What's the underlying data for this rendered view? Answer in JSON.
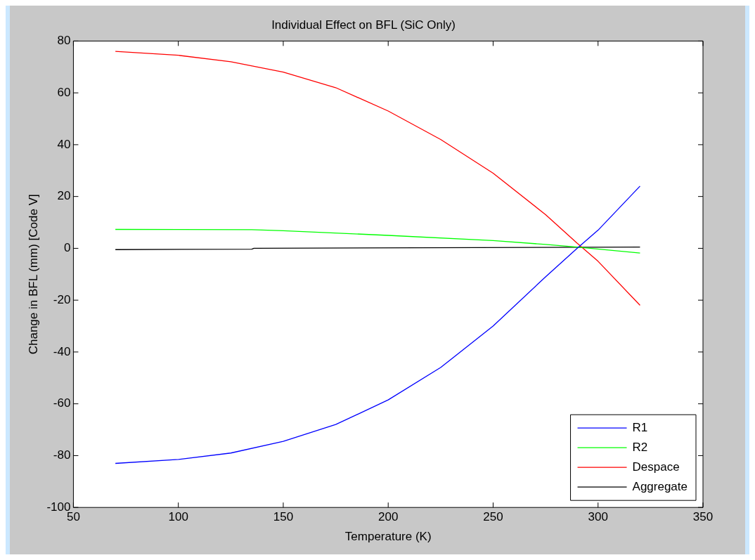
{
  "chart_data": {
    "type": "line",
    "title": "Individual Effect on BFL (SiC Only)",
    "xlabel": "Temperature (K)",
    "ylabel": "Change in BFL (mm) [Code V]",
    "xlim": [
      50,
      350
    ],
    "xticks": [
      50,
      100,
      150,
      200,
      250,
      300,
      350
    ],
    "ylim": [
      -100,
      80
    ],
    "yticks": [
      -100,
      -80,
      -60,
      -40,
      -20,
      0,
      20,
      40,
      60,
      80
    ],
    "grid": false,
    "legend": "bottom right",
    "marker": "none",
    "line_style": "solid",
    "series": [
      {
        "name": "R1",
        "color": "#0000ff",
        "x": [
          70,
          100,
          125,
          150,
          175,
          200,
          225,
          250,
          275,
          290,
          300,
          320
        ],
        "values": [
          -83,
          -81.5,
          -79,
          -74.5,
          -68,
          -58.5,
          -46,
          -30,
          -11,
          0,
          7,
          24
        ]
      },
      {
        "name": "R2",
        "color": "#00ff00",
        "x": [
          70,
          135,
          150,
          200,
          250,
          275,
          290,
          320
        ],
        "values": [
          7.3,
          7.2,
          6.8,
          5,
          3,
          1.5,
          0.5,
          -1.8
        ]
      },
      {
        "name": "Despace",
        "color": "#ff0000",
        "x": [
          70,
          100,
          125,
          150,
          175,
          200,
          225,
          250,
          275,
          290,
          300,
          320
        ],
        "values": [
          76,
          74.5,
          72,
          68,
          62,
          53,
          42,
          29,
          13,
          2,
          -5,
          -22
        ]
      },
      {
        "name": "Aggregate",
        "color": "#000000",
        "x": [
          70,
          135,
          136,
          320
        ],
        "values": [
          -0.5,
          -0.3,
          0,
          0.5
        ]
      }
    ]
  }
}
